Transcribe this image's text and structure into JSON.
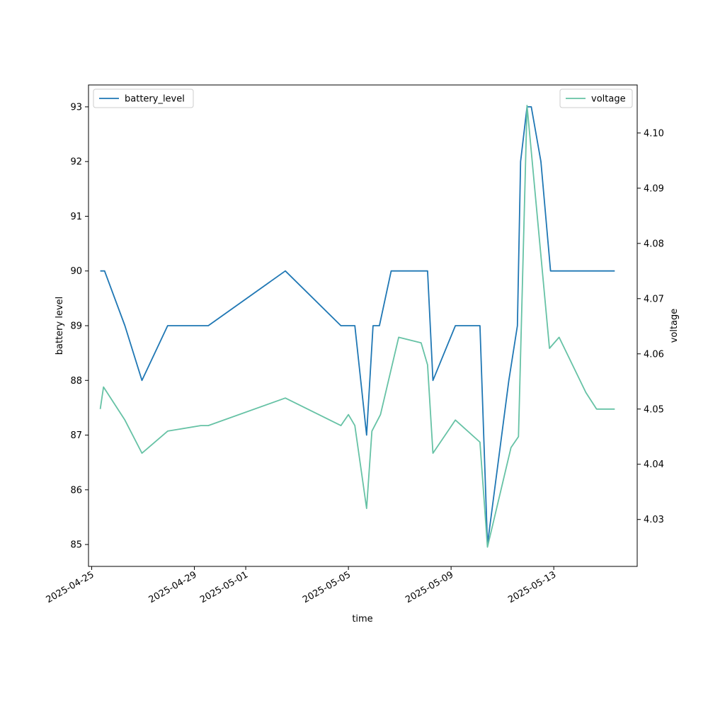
{
  "chart_data": {
    "type": "line",
    "xlabel": "time",
    "x_axis": {
      "type": "date",
      "range": [
        "2025-04-24T21:00",
        "2025-05-16T06:00"
      ],
      "ticks": [
        "2025-04-25",
        "2025-04-29",
        "2025-05-01",
        "2025-05-05",
        "2025-05-09",
        "2025-05-13"
      ]
    },
    "y_left": {
      "label": "battery level",
      "range": [
        84.6,
        93.4
      ],
      "ticks": [
        85,
        86,
        87,
        88,
        89,
        90,
        91,
        92,
        93
      ]
    },
    "y_right": {
      "label": "voltage",
      "range": [
        4.0215,
        4.1087
      ],
      "ticks": [
        "4.03",
        "4.04",
        "4.05",
        "4.06",
        "4.07",
        "4.08",
        "4.09",
        "4.10"
      ]
    },
    "series": [
      {
        "name": "battery_level",
        "axis": "left",
        "color": "#1f77b4",
        "legend_position": "top-left",
        "points": [
          [
            "2025-04-25T08:00",
            90
          ],
          [
            "2025-04-25T12:00",
            90
          ],
          [
            "2025-04-26T07:00",
            89
          ],
          [
            "2025-04-26T23:00",
            88
          ],
          [
            "2025-04-27T23:00",
            89
          ],
          [
            "2025-04-29T13:00",
            89
          ],
          [
            "2025-05-02T13:00",
            90
          ],
          [
            "2025-05-04T17:00",
            89
          ],
          [
            "2025-05-05T06:00",
            89
          ],
          [
            "2025-05-05T17:00",
            87
          ],
          [
            "2025-05-05T23:00",
            89
          ],
          [
            "2025-05-06T05:00",
            89
          ],
          [
            "2025-05-06T16:00",
            90
          ],
          [
            "2025-05-08T02:00",
            90
          ],
          [
            "2025-05-08T07:00",
            88
          ],
          [
            "2025-05-09T04:00",
            89
          ],
          [
            "2025-05-10T03:00",
            89
          ],
          [
            "2025-05-10T10:00",
            85
          ],
          [
            "2025-05-11T06:00",
            88
          ],
          [
            "2025-05-11T14:00",
            89
          ],
          [
            "2025-05-11T17:00",
            92
          ],
          [
            "2025-05-11T23:00",
            93
          ],
          [
            "2025-05-12T03:00",
            93
          ],
          [
            "2025-05-12T12:00",
            92
          ],
          [
            "2025-05-12T21:00",
            90
          ],
          [
            "2025-05-15T09:00",
            90
          ]
        ]
      },
      {
        "name": "voltage",
        "axis": "right",
        "color": "#66c2a5",
        "legend_position": "top-right",
        "points": [
          [
            "2025-04-25T08:00",
            4.05
          ],
          [
            "2025-04-25T11:00",
            4.054
          ],
          [
            "2025-04-26T07:00",
            4.048
          ],
          [
            "2025-04-26T23:00",
            4.042
          ],
          [
            "2025-04-27T23:00",
            4.046
          ],
          [
            "2025-04-29T06:00",
            4.047
          ],
          [
            "2025-04-29T13:00",
            4.047
          ],
          [
            "2025-05-02T13:00",
            4.052
          ],
          [
            "2025-05-04T17:00",
            4.047
          ],
          [
            "2025-05-05T00:00",
            4.049
          ],
          [
            "2025-05-05T06:00",
            4.047
          ],
          [
            "2025-05-05T17:00",
            4.032
          ],
          [
            "2025-05-05T22:00",
            4.046
          ],
          [
            "2025-05-06T06:00",
            4.049
          ],
          [
            "2025-05-06T23:00",
            4.063
          ],
          [
            "2025-05-07T20:00",
            4.062
          ],
          [
            "2025-05-08T02:00",
            4.058
          ],
          [
            "2025-05-08T07:00",
            4.042
          ],
          [
            "2025-05-09T04:00",
            4.048
          ],
          [
            "2025-05-10T03:00",
            4.044
          ],
          [
            "2025-05-10T10:00",
            4.025
          ],
          [
            "2025-05-11T08:00",
            4.043
          ],
          [
            "2025-05-11T15:00",
            4.045
          ],
          [
            "2025-05-11T23:00",
            4.105
          ],
          [
            "2025-05-12T20:00",
            4.061
          ],
          [
            "2025-05-13T05:00",
            4.063
          ],
          [
            "2025-05-14T06:00",
            4.053
          ],
          [
            "2025-05-14T16:00",
            4.05
          ],
          [
            "2025-05-15T09:00",
            4.05
          ]
        ]
      }
    ],
    "grid": false
  }
}
